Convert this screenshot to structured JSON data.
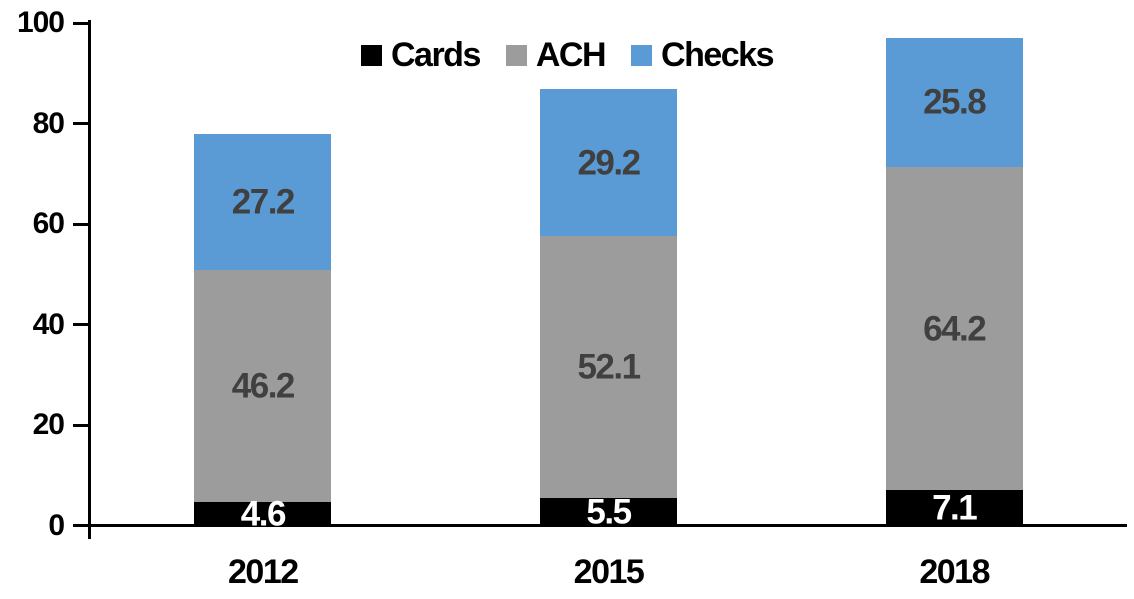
{
  "chart_data": {
    "type": "bar",
    "stacked": true,
    "title": "",
    "xlabel": "",
    "ylabel": "",
    "categories": [
      "2012",
      "2015",
      "2018"
    ],
    "series": [
      {
        "name": "Cards",
        "color": "#000000",
        "label_color": "#ffffff",
        "values": [
          4.6,
          5.5,
          7.1
        ]
      },
      {
        "name": "ACH",
        "color": "#9C9C9C",
        "label_color": "#404040",
        "values": [
          46.2,
          52.1,
          64.2
        ]
      },
      {
        "name": "Checks",
        "color": "#5B9BD5",
        "label_color": "#404040",
        "values": [
          27.2,
          29.2,
          25.8
        ]
      }
    ],
    "ylim": [
      0,
      100
    ],
    "yticks": [
      0,
      20,
      40,
      60,
      80,
      100
    ],
    "grid": false,
    "legend_position": "top-center",
    "axis_color": "#000000"
  }
}
